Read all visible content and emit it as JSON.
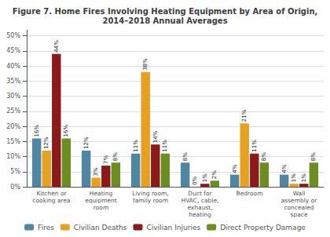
{
  "chart_data": {
    "type": "bar",
    "title": "Figure 7. Home Fires Involving Heating Equipment by Area of Origin,\n2014–2018 Annual Averages",
    "categories": [
      "Kitchen or\ncooking area",
      "Heating\nequipment\nroom",
      "Living room,\nfamily room",
      "Duct for\nHVAC, cable,\nexhaust,\nheating",
      "Bedroom",
      "Wall\nassembly or\nconcealed\nspace"
    ],
    "series": [
      {
        "name": "Fires",
        "color": "#4e86a4",
        "values": [
          16,
          12,
          11,
          8,
          4,
          4
        ],
        "value_labels": [
          "16%",
          "12%",
          "11%",
          "8%",
          "4%",
          "4%"
        ]
      },
      {
        "name": "Civilian Deaths",
        "color": "#e8a020",
        "values": [
          12,
          3,
          38,
          0,
          21,
          1
        ],
        "value_labels": [
          "12%",
          "3%",
          "38%",
          "0%",
          "21%",
          "1%"
        ]
      },
      {
        "name": "Civilian Injuries",
        "color": "#8b1a1a",
        "values": [
          44,
          7,
          14,
          1,
          11,
          1
        ],
        "value_labels": [
          "44%",
          "7%",
          "14%",
          "1%",
          "11%",
          "1%"
        ]
      },
      {
        "name": "Direct Property Damage",
        "color": "#6b8e23",
        "values": [
          16,
          8,
          11,
          2,
          8,
          8
        ],
        "value_labels": [
          "16%",
          "8%",
          "11%",
          "2%",
          "8%",
          "8%"
        ]
      }
    ],
    "ylim": [
      0,
      52
    ],
    "yticks": [
      {
        "value": 0,
        "label": "0%"
      },
      {
        "value": 5,
        "label": "5%"
      },
      {
        "value": 10,
        "label": "10%"
      },
      {
        "value": 15,
        "label": "15%"
      },
      {
        "value": 20,
        "label": "20%"
      },
      {
        "value": 25,
        "label": "25%"
      },
      {
        "value": 30,
        "label": "30%"
      },
      {
        "value": 35,
        "label": "35%"
      },
      {
        "value": 40,
        "label": "40%"
      },
      {
        "value": 45,
        "label": "45%"
      },
      {
        "value": 50,
        "label": "50%"
      }
    ],
    "grid": true,
    "legend": "bottom",
    "data_labels": true
  }
}
